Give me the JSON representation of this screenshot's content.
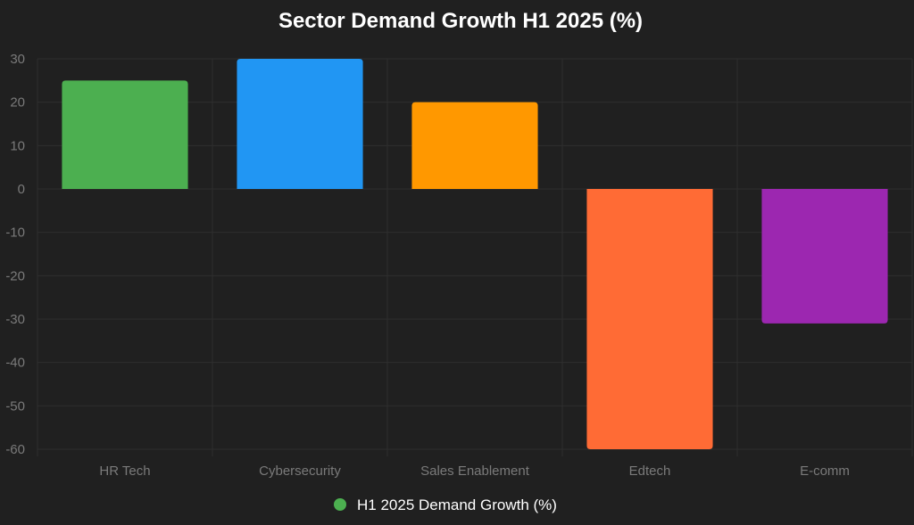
{
  "chart_data": {
    "type": "bar",
    "title": "Sector Demand Growth H1 2025 (%)",
    "xlabel": "",
    "ylabel": "",
    "categories": [
      "HR Tech",
      "Cybersecurity",
      "Sales Enablement",
      "Edtech",
      "E-comm"
    ],
    "series": [
      {
        "name": "H1 2025 Demand Growth (%)",
        "values": [
          25,
          30,
          20,
          -60,
          -31
        ],
        "colors": [
          "#4caf50",
          "#2196f3",
          "#ff9800",
          "#ff6b35",
          "#9c27b0"
        ]
      }
    ],
    "ylim": [
      -60,
      30
    ],
    "yticks": [
      30,
      20,
      10,
      0,
      -10,
      -20,
      -30,
      -40,
      -50,
      -60
    ],
    "grid": true,
    "legend": {
      "position": "bottom",
      "marker_color": "#4caf50"
    }
  }
}
